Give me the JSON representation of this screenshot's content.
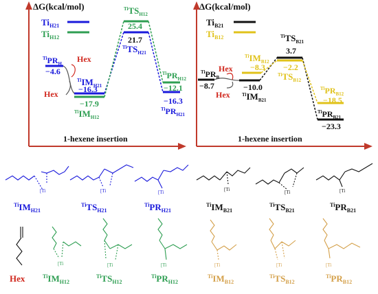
{
  "colors": {
    "axis": "#c0392b",
    "h21": "#1a1adb",
    "h12": "#2e9e52",
    "b21": "#111111",
    "b12": "#e0c21a",
    "hex": "#d0261c",
    "b12_struct": "#d4a04a"
  },
  "left_panel": {
    "axis_label": "ΔG(kcal/mol)",
    "xlabel": "1-hexene insertion",
    "legend": [
      {
        "label": "Ti",
        "sub": "H21",
        "color_key": "h21"
      },
      {
        "label": "Ti",
        "sub": "H12",
        "color_key": "h12"
      }
    ],
    "labels": {
      "pr_state": {
        "sup": "Ti",
        "main": "PR",
        "sub": "H"
      },
      "pr_value": "−4.6",
      "hex_top": "Hex",
      "hex_bottom": "Hex",
      "im_h21": {
        "sup": "Ti",
        "main": "IM",
        "sub": "H21"
      },
      "im_h21_value": "−16.3",
      "im_h12_value": "−17.9",
      "im_h12": {
        "sup": "Ti",
        "main": "IM",
        "sub": "H12"
      },
      "ts_h12": {
        "sup": "Ti",
        "main": "TS",
        "sub": "H12"
      },
      "ts_h12_value": "25.4",
      "ts_h21_value": "21.7",
      "ts_h21": {
        "sup": "Ti",
        "main": "TS",
        "sub": "H21"
      },
      "pr_h12": {
        "sup": "Ti",
        "main": "PR",
        "sub": "H12"
      },
      "pr_h12_value": "−12.1",
      "pr_h21_value": "−16.3",
      "pr_h21": {
        "sup": "Ti",
        "main": "PR",
        "sub": "H21"
      }
    }
  },
  "right_panel": {
    "axis_label": "ΔG(kcal/mol)",
    "xlabel": "1-hexene insertion",
    "legend": [
      {
        "label": "Ti",
        "sub": "B21",
        "color_key": "b21"
      },
      {
        "label": "Ti",
        "sub": "B12",
        "color_key": "b12"
      }
    ],
    "labels": {
      "pr_state": {
        "sup": "Ti",
        "main": "PR",
        "sub": "B"
      },
      "pr_value": "−8.7",
      "hex_top": "Hex",
      "hex_bottom": "Hex",
      "im_b12": {
        "sup": "Ti",
        "main": "IM",
        "sub": "B12"
      },
      "im_b12_value": "−8.3",
      "im_b21_value": "−10.0",
      "im_b21": {
        "sup": "Ti",
        "main": "IM",
        "sub": "B21"
      },
      "ts_b21": {
        "sup": "Ti",
        "main": "TS",
        "sub": "B21"
      },
      "ts_b21_value": "3.7",
      "ts_b12_value": "−2.2",
      "ts_b12": {
        "sup": "Ti",
        "main": "TS",
        "sub": "B12"
      },
      "pr_b12": {
        "sup": "Ti",
        "main": "PR",
        "sub": "B12"
      },
      "pr_b12_value": "−18.5",
      "pr_b21": {
        "sup": "Ti",
        "main": "PR",
        "sub": "B21"
      },
      "pr_b21_value": "−23.3"
    }
  },
  "structures": {
    "ti_label": "[Ti",
    "row1": [
      {
        "sup": "Ti",
        "main": "IM",
        "sub": "H21",
        "color_key": "h21"
      },
      {
        "sup": "Ti",
        "main": "TS",
        "sub": "H21",
        "color_key": "h21"
      },
      {
        "sup": "Ti",
        "main": "PR",
        "sub": "H21",
        "color_key": "h21"
      },
      {
        "sup": "Ti",
        "main": "IM",
        "sub": "B21",
        "color_key": "b21"
      },
      {
        "sup": "Ti",
        "main": "TS",
        "sub": "B21",
        "color_key": "b21"
      },
      {
        "sup": "Ti",
        "main": "PR",
        "sub": "B21",
        "color_key": "b21"
      }
    ],
    "row2": [
      {
        "sup": "",
        "main": "Hex",
        "sub": "",
        "color_key": "hex"
      },
      {
        "sup": "Ti",
        "main": "IM",
        "sub": "H12",
        "color_key": "h12"
      },
      {
        "sup": "Ti",
        "main": "TS",
        "sub": "H12",
        "color_key": "h12"
      },
      {
        "sup": "Ti",
        "main": "PR",
        "sub": "H12",
        "color_key": "h12"
      },
      {
        "sup": "Ti",
        "main": "IM",
        "sub": "B12",
        "color_key": "b12"
      },
      {
        "sup": "Ti",
        "main": "TS",
        "sub": "B12",
        "color_key": "b12"
      },
      {
        "sup": "Ti",
        "main": "PR",
        "sub": "B12",
        "color_key": "b12"
      }
    ]
  }
}
